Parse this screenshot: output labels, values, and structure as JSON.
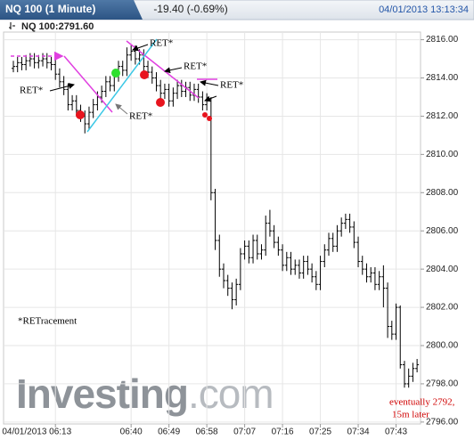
{
  "chart_data": {
    "type": "ohlc",
    "title": "NQ 100 (1 Minute)",
    "change": "-19.40 (-0.69%)",
    "datetime": "04/01/2013 13:13:34",
    "subtitle": "NQ 100:2791.60",
    "color": "#000000",
    "grid": true,
    "watermark": [
      "Investing",
      ".com"
    ],
    "annotations": [
      "RET*",
      "RET*",
      "RET*",
      "RET*",
      "RET*",
      "*RETracement",
      "eventually 2792,",
      "15m later"
    ],
    "ylim": [
      2795.9,
      2816.4
    ],
    "yticks": [
      {
        "value": 2796,
        "label": "2796.00"
      },
      {
        "value": 2798,
        "label": "2798.00"
      },
      {
        "value": 2800,
        "label": "2800.00"
      },
      {
        "value": 2802,
        "label": "2802.00"
      },
      {
        "value": 2804,
        "label": "2804.00"
      },
      {
        "value": 2806,
        "label": "2806.00"
      },
      {
        "value": 2808,
        "label": "2808.00"
      },
      {
        "value": 2810,
        "label": "2810.00"
      },
      {
        "value": 2812,
        "label": "2812.00"
      },
      {
        "value": 2814,
        "label": "2814.00"
      },
      {
        "value": 2816,
        "label": "2816.00"
      }
    ],
    "categories": [
      null,
      null,
      null,
      null,
      null,
      null,
      null,
      null,
      null,
      null,
      "04/01/2013 06:13",
      null,
      null,
      null,
      null,
      null,
      null,
      null,
      null,
      null,
      null,
      null,
      null,
      null,
      null,
      null,
      null,
      null,
      "06:40",
      null,
      null,
      null,
      null,
      null,
      null,
      null,
      null,
      "06:49",
      null,
      null,
      null,
      null,
      null,
      null,
      null,
      null,
      "06:58",
      null,
      null,
      null,
      null,
      null,
      null,
      null,
      null,
      "07:07",
      null,
      null,
      null,
      null,
      null,
      null,
      null,
      null,
      "07:16",
      null,
      null,
      null,
      null,
      null,
      null,
      null,
      null,
      "07:25",
      null,
      null,
      null,
      null,
      null,
      null,
      null,
      null,
      "07:34",
      null,
      null,
      null,
      null,
      null,
      null,
      null,
      null,
      "07:43",
      null,
      null,
      null,
      null,
      null
    ],
    "ohlc": [
      [
        2814.5,
        2814.9,
        2814.3,
        2814.6
      ],
      [
        2814.6,
        2815.1,
        2814.3,
        2814.8
      ],
      [
        2814.8,
        2815.1,
        2814.4,
        2814.7
      ],
      [
        2814.7,
        2815.2,
        2814.4,
        2814.9
      ],
      [
        2814.9,
        2815.3,
        2814.6,
        2815.0
      ],
      [
        2815.0,
        2815.3,
        2814.5,
        2814.8
      ],
      [
        2814.8,
        2815.2,
        2814.5,
        2814.9
      ],
      [
        2814.9,
        2815.3,
        2814.6,
        2815.0
      ],
      [
        2815.0,
        2815.3,
        2814.5,
        2814.8
      ],
      [
        2814.8,
        2815.1,
        2814.4,
        2814.7
      ],
      [
        2814.7,
        2815.0,
        2813.9,
        2814.2
      ],
      [
        2814.2,
        2814.5,
        2813.5,
        2813.8
      ],
      [
        2813.8,
        2814.1,
        2813.1,
        2813.4
      ],
      [
        2813.4,
        2813.7,
        2812.3,
        2812.6
      ],
      [
        2812.6,
        2813.1,
        2812.3,
        2812.8
      ],
      [
        2812.8,
        2813.1,
        2812.0,
        2812.3
      ],
      [
        2812.3,
        2812.6,
        2811.7,
        2812.0
      ],
      [
        2812.0,
        2812.3,
        2811.1,
        2811.6
      ],
      [
        2811.6,
        2812.5,
        2811.3,
        2812.2
      ],
      [
        2812.2,
        2812.9,
        2811.9,
        2812.6
      ],
      [
        2812.6,
        2813.3,
        2812.3,
        2813.0
      ],
      [
        2813.0,
        2813.6,
        2812.7,
        2813.3
      ],
      [
        2813.3,
        2814.1,
        2813.0,
        2813.8
      ],
      [
        2813.8,
        2814.1,
        2813.3,
        2813.6
      ],
      [
        2813.6,
        2814.4,
        2813.3,
        2814.1
      ],
      [
        2814.1,
        2814.9,
        2813.8,
        2814.6
      ],
      [
        2814.6,
        2814.9,
        2814.1,
        2814.4
      ],
      [
        2814.4,
        2815.6,
        2814.1,
        2815.2
      ],
      [
        2815.2,
        2815.7,
        2814.9,
        2815.4
      ],
      [
        2815.4,
        2815.7,
        2814.7,
        2815.0
      ],
      [
        2815.0,
        2815.5,
        2814.7,
        2815.2
      ],
      [
        2815.2,
        2815.5,
        2814.3,
        2814.6
      ],
      [
        2814.6,
        2814.9,
        2814.0,
        2814.3
      ],
      [
        2814.3,
        2814.6,
        2813.7,
        2814.0
      ],
      [
        2814.0,
        2814.3,
        2813.3,
        2813.6
      ],
      [
        2813.6,
        2813.9,
        2812.9,
        2813.2
      ],
      [
        2813.2,
        2813.7,
        2812.9,
        2813.4
      ],
      [
        2813.4,
        2813.7,
        2812.5,
        2812.8
      ],
      [
        2812.8,
        2813.5,
        2812.5,
        2813.2
      ],
      [
        2813.2,
        2813.9,
        2812.9,
        2813.6
      ],
      [
        2813.6,
        2813.9,
        2813.0,
        2813.3
      ],
      [
        2813.3,
        2813.8,
        2813.0,
        2813.5
      ],
      [
        2813.5,
        2813.8,
        2812.8,
        2813.1
      ],
      [
        2813.1,
        2813.7,
        2812.8,
        2813.4
      ],
      [
        2813.4,
        2813.7,
        2812.7,
        2813.0
      ],
      [
        2813.0,
        2813.3,
        2812.3,
        2812.6
      ],
      [
        2812.6,
        2813.2,
        2812.3,
        2812.9
      ],
      [
        2812.9,
        2813.0,
        2807.6,
        2808.0
      ],
      [
        2808.0,
        2808.2,
        2805.0,
        2805.5
      ],
      [
        2805.5,
        2805.8,
        2803.6,
        2804.0
      ],
      [
        2804.0,
        2804.3,
        2803.0,
        2803.4
      ],
      [
        2803.4,
        2803.7,
        2802.6,
        2803.0
      ],
      [
        2803.0,
        2803.3,
        2801.9,
        2802.4
      ],
      [
        2802.4,
        2803.5,
        2802.1,
        2803.2
      ],
      [
        2803.2,
        2805.1,
        2802.9,
        2804.8
      ],
      [
        2804.8,
        2805.5,
        2804.5,
        2805.2
      ],
      [
        2805.2,
        2805.5,
        2804.3,
        2804.6
      ],
      [
        2804.6,
        2805.8,
        2804.3,
        2805.5
      ],
      [
        2805.5,
        2805.8,
        2804.5,
        2804.8
      ],
      [
        2804.8,
        2805.3,
        2804.5,
        2805.0
      ],
      [
        2805.0,
        2806.8,
        2804.7,
        2806.4
      ],
      [
        2806.4,
        2807.1,
        2805.7,
        2806.0
      ],
      [
        2806.0,
        2806.3,
        2805.1,
        2805.4
      ],
      [
        2805.4,
        2805.7,
        2804.7,
        2805.0
      ],
      [
        2805.0,
        2805.3,
        2803.9,
        2804.2
      ],
      [
        2804.2,
        2804.9,
        2803.9,
        2804.6
      ],
      [
        2804.6,
        2804.9,
        2803.7,
        2804.0
      ],
      [
        2804.0,
        2804.5,
        2803.7,
        2804.2
      ],
      [
        2804.2,
        2804.5,
        2803.5,
        2803.8
      ],
      [
        2803.8,
        2804.7,
        2803.5,
        2804.4
      ],
      [
        2804.4,
        2804.7,
        2803.7,
        2804.0
      ],
      [
        2804.0,
        2804.3,
        2803.3,
        2803.6
      ],
      [
        2803.6,
        2803.9,
        2802.9,
        2803.2
      ],
      [
        2803.2,
        2804.7,
        2802.9,
        2804.4
      ],
      [
        2804.4,
        2805.3,
        2804.1,
        2805.0
      ],
      [
        2805.0,
        2805.9,
        2804.7,
        2805.6
      ],
      [
        2805.6,
        2805.9,
        2804.9,
        2805.2
      ],
      [
        2805.2,
        2806.3,
        2804.9,
        2806.0
      ],
      [
        2806.0,
        2806.7,
        2805.7,
        2806.4
      ],
      [
        2806.4,
        2806.9,
        2806.1,
        2806.6
      ],
      [
        2806.6,
        2806.9,
        2805.9,
        2806.2
      ],
      [
        2806.2,
        2806.5,
        2805.1,
        2805.4
      ],
      [
        2805.4,
        2805.7,
        2804.1,
        2804.4
      ],
      [
        2804.4,
        2804.7,
        2803.7,
        2804.0
      ],
      [
        2804.0,
        2804.3,
        2803.3,
        2803.6
      ],
      [
        2803.6,
        2804.1,
        2803.3,
        2803.8
      ],
      [
        2803.8,
        2804.1,
        2802.9,
        2803.2
      ],
      [
        2803.2,
        2803.9,
        2802.9,
        2803.6
      ],
      [
        2803.6,
        2804.2,
        2802.0,
        2803.0
      ],
      [
        2803.0,
        2803.3,
        2800.4,
        2801.0
      ],
      [
        2801.0,
        2801.3,
        2800.3,
        2800.6
      ],
      [
        2800.6,
        2802.2,
        2800.3,
        2802.0
      ],
      [
        2802.0,
        2802.1,
        2798.8,
        2799.0
      ],
      [
        2799.0,
        2799.2,
        2797.8,
        2798.0
      ],
      [
        2798.0,
        2798.8,
        2797.8,
        2798.4
      ],
      [
        2798.4,
        2799.1,
        2798.1,
        2798.8
      ],
      [
        2798.8,
        2799.3,
        2798.6,
        2799.0
      ]
    ]
  }
}
